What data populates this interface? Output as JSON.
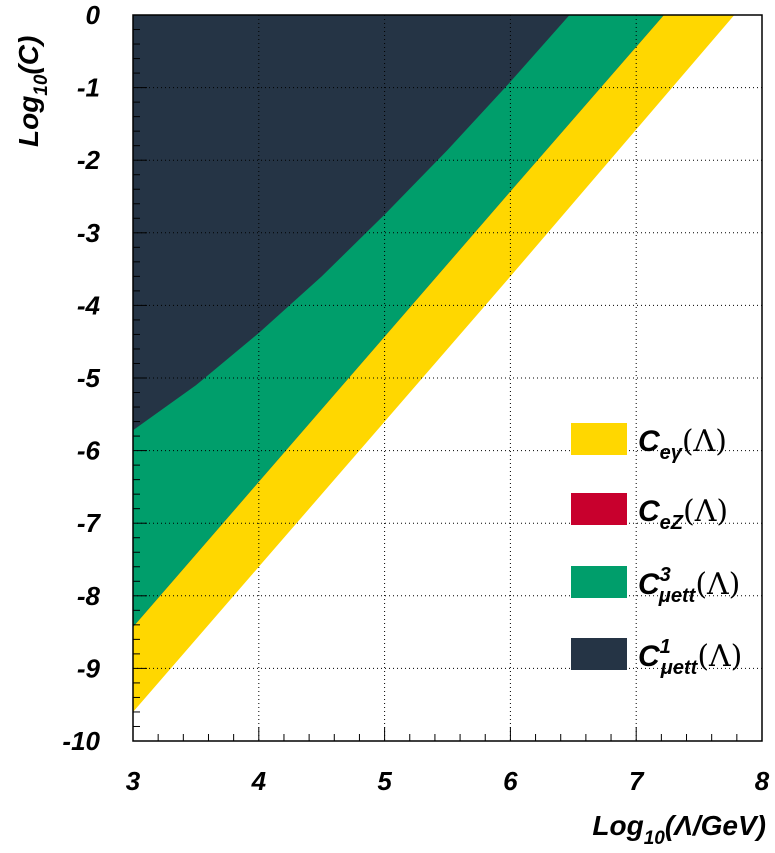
{
  "chart_data": {
    "type": "area",
    "x_label_prefix": "Log",
    "x_label_sub": "10",
    "x_label_suffix": "(Λ/GeV)",
    "y_label_prefix": "Log",
    "y_label_sub": "10",
    "y_label_suffix": "(C)",
    "xlim": [
      3,
      8
    ],
    "ylim": [
      -10,
      0
    ],
    "x_ticks": [
      "3",
      "4",
      "5",
      "6",
      "7",
      "8"
    ],
    "y_ticks": [
      "0",
      "-1",
      "-2",
      "-3",
      "-4",
      "-5",
      "-6",
      "-7",
      "-8",
      "-9",
      "-10"
    ],
    "grid": true,
    "legend_position": "right",
    "series": [
      {
        "base": "C",
        "sub": "eγ",
        "sup": "",
        "tail": "(Λ)",
        "color": "#FFD700",
        "boundary": [
          [
            3,
            -9.6
          ],
          [
            4,
            -7.6
          ],
          [
            5,
            -5.6
          ],
          [
            6,
            -3.6
          ],
          [
            7.78,
            0
          ]
        ]
      },
      {
        "base": "C",
        "sub": "eZ",
        "sup": "",
        "tail": "(Λ)",
        "color": "#C8002D",
        "boundary": [
          [
            3,
            -8.43
          ],
          [
            4,
            -6.43
          ],
          [
            5,
            -4.43
          ],
          [
            6,
            -2.43
          ],
          [
            7.22,
            0
          ]
        ]
      },
      {
        "base": "C",
        "sub": "μett",
        "sup": "3",
        "tail": "(Λ)",
        "color": "#009E6B",
        "boundary": [
          [
            3,
            -8.43
          ],
          [
            4,
            -6.43
          ],
          [
            5,
            -4.43
          ],
          [
            6,
            -2.43
          ],
          [
            7.22,
            0
          ]
        ]
      },
      {
        "base": "C",
        "sub": "μett",
        "sup": "1",
        "tail": "(Λ)",
        "color": "#253445",
        "boundary": [
          [
            3,
            -5.72
          ],
          [
            3.5,
            -5.1
          ],
          [
            4,
            -4.38
          ],
          [
            4.5,
            -3.6
          ],
          [
            5,
            -2.75
          ],
          [
            5.5,
            -1.86
          ],
          [
            6,
            -0.92
          ],
          [
            6.47,
            0
          ]
        ]
      }
    ]
  }
}
